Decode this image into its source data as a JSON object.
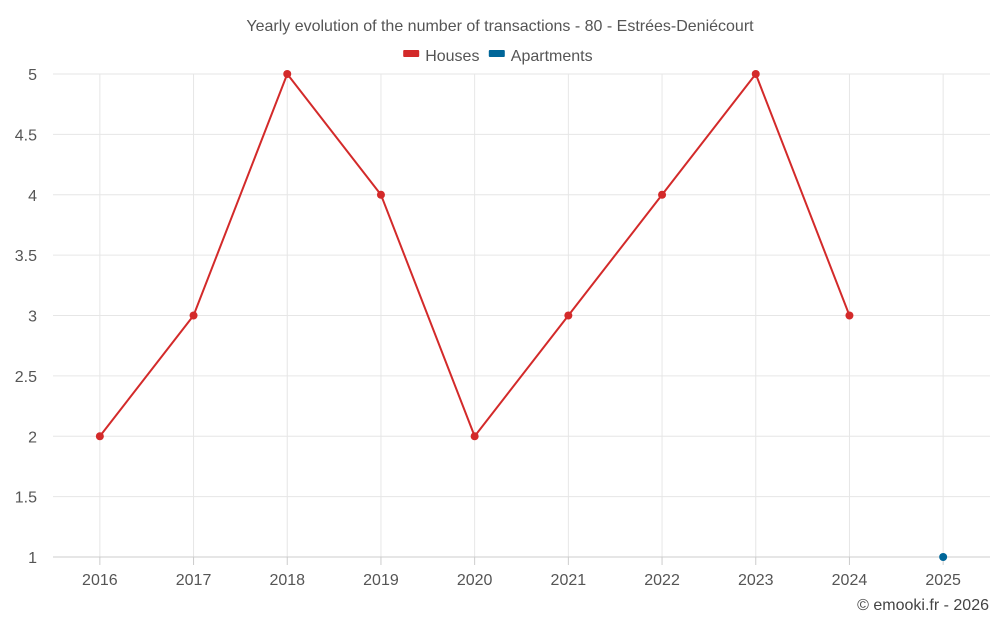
{
  "chart_data": {
    "type": "line",
    "title": "Yearly evolution of the number of transactions - 80 - Estrées-Deniécourt",
    "xlabel": "",
    "ylabel": "",
    "categories": [
      "2016",
      "2017",
      "2018",
      "2019",
      "2020",
      "2021",
      "2022",
      "2023",
      "2024",
      "2025"
    ],
    "ylim": [
      1,
      5
    ],
    "yticks": [
      "1",
      "1.5",
      "2",
      "2.5",
      "3",
      "3.5",
      "4",
      "4.5",
      "5"
    ],
    "grid": true,
    "legend_position": "top-center",
    "series": [
      {
        "name": "Houses",
        "color": "#d32a2a",
        "values": [
          2,
          3,
          5,
          4,
          2,
          3,
          4,
          5,
          3,
          null
        ]
      },
      {
        "name": "Apartments",
        "color": "#006699",
        "values": [
          null,
          null,
          null,
          null,
          null,
          null,
          null,
          null,
          null,
          1
        ]
      }
    ]
  },
  "credit": "© emooki.fr - 2026"
}
